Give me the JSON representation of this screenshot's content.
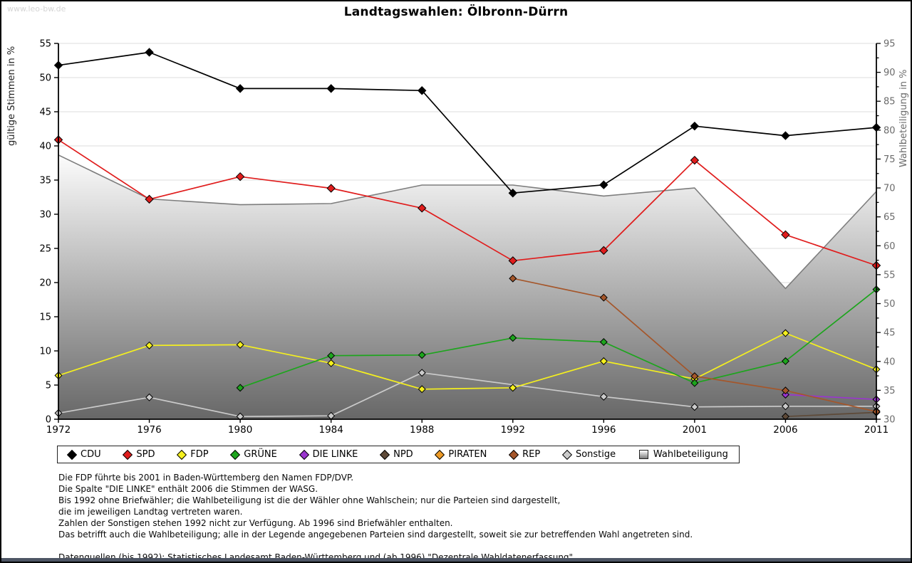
{
  "page": {
    "title": "Landtagswahlen: Ölbronn-Dürrn",
    "watermark": "www.leo-bw.de"
  },
  "chart_data": {
    "type": "line",
    "title": "Landtagswahlen: Ölbronn-Dürrn",
    "x": [
      1972,
      1976,
      1980,
      1984,
      1988,
      1992,
      1996,
      2001,
      2006,
      2011
    ],
    "left_axis": {
      "label": "gültige Stimmen in %",
      "min": 0,
      "max": 55,
      "tick_step": 5
    },
    "right_axis": {
      "label": "Wahlbeteiligung in %",
      "min": 30,
      "max": 95,
      "tick_step": 5
    },
    "grid": true,
    "legend_position": "bottom",
    "series": [
      {
        "name": "CDU",
        "color": "#000000",
        "axis": "left",
        "kind": "line",
        "values": [
          51.8,
          53.7,
          48.4,
          48.4,
          48.1,
          33.1,
          34.3,
          42.9,
          41.5,
          42.7
        ]
      },
      {
        "name": "SPD",
        "color": "#e01c1c",
        "axis": "left",
        "kind": "line",
        "values": [
          40.9,
          32.2,
          35.5,
          33.8,
          30.9,
          23.2,
          24.7,
          37.9,
          27.0,
          22.5
        ]
      },
      {
        "name": "FDP",
        "color": "#f5f01e",
        "axis": "left",
        "kind": "line",
        "values": [
          6.4,
          10.8,
          10.9,
          8.2,
          4.4,
          4.6,
          8.5,
          5.9,
          12.6,
          7.3
        ]
      },
      {
        "name": "GRÜNE",
        "color": "#1da51d",
        "axis": "left",
        "kind": "line",
        "values": [
          null,
          null,
          4.6,
          9.3,
          9.4,
          11.9,
          11.3,
          5.3,
          8.5,
          19.0
        ]
      },
      {
        "name": "DIE LINKE",
        "color": "#9a35cf",
        "axis": "left",
        "kind": "line",
        "values": [
          null,
          null,
          null,
          null,
          null,
          null,
          null,
          null,
          3.6,
          2.9
        ]
      },
      {
        "name": "NPD",
        "color": "#5e4a38",
        "axis": "left",
        "kind": "line",
        "values": [
          null,
          null,
          null,
          null,
          null,
          null,
          null,
          null,
          0.4,
          1.0
        ]
      },
      {
        "name": "PIRATEN",
        "color": "#ee9b27",
        "axis": "left",
        "kind": "line",
        "values": [
          null,
          null,
          null,
          null,
          null,
          null,
          null,
          null,
          null,
          1.2
        ]
      },
      {
        "name": "REP",
        "color": "#a5562a",
        "axis": "left",
        "kind": "line",
        "values": [
          null,
          null,
          null,
          null,
          null,
          20.6,
          17.8,
          6.3,
          4.2,
          1.1
        ]
      },
      {
        "name": "Sonstige",
        "color": "#cbcbcb",
        "axis": "left",
        "kind": "line",
        "values": [
          0.9,
          3.2,
          0.4,
          0.5,
          6.8,
          null,
          3.3,
          1.8,
          1.9,
          1.9
        ]
      },
      {
        "name": "Wahlbeteiligung",
        "color": "#7d7d7d",
        "axis": "right",
        "kind": "area",
        "values": [
          75.7,
          68.1,
          67.1,
          67.3,
          70.5,
          70.5,
          68.6,
          70.0,
          52.6,
          69.4
        ]
      }
    ]
  },
  "footnotes": {
    "lines": [
      "Die FDP führte bis 2001 in Baden-Württemberg den Namen FDP/DVP.",
      "Die Spalte \"DIE LINKE\" enthält 2006 die Stimmen der WASG.",
      "Bis 1992 ohne Briefwähler; die Wahlbeteiligung ist die der Wähler ohne Wahlschein; nur die Parteien sind dargestellt,",
      "die im jeweiligen Landtag vertreten waren.",
      "Zahlen der Sonstigen stehen 1992 nicht zur Verfügung. Ab 1996 sind Briefwähler enthalten.",
      "Das betrifft auch die Wahlbeteiligung; alle in der Legende angegebenen Parteien sind dargestellt, soweit sie zur betreffenden Wahl angetreten sind.",
      "",
      "Datenquellen (bis 1992): Statistisches Landesamt Baden-Württemberg und (ab 1996) \"Dezentrale Wahldatenerfassung\"."
    ]
  }
}
